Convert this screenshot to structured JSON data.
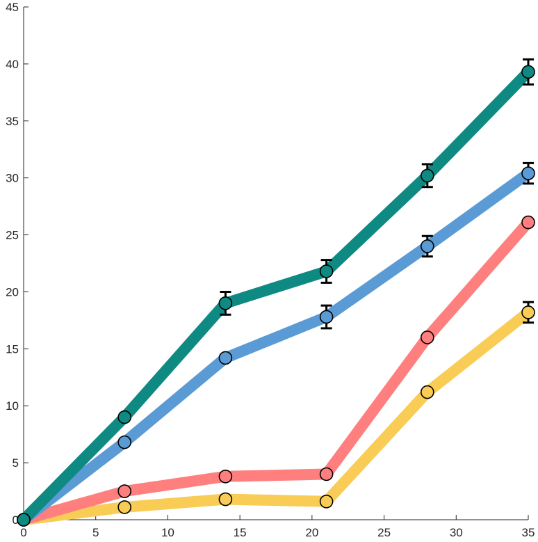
{
  "chart_data": {
    "type": "line",
    "title": "",
    "xlabel": "",
    "ylabel": "",
    "xlim": [
      0,
      35
    ],
    "ylim": [
      0,
      45
    ],
    "grid": false,
    "legend": "none",
    "x_ticks": [
      0,
      5,
      10,
      15,
      20,
      25,
      30,
      35
    ],
    "y_ticks": [
      0,
      5,
      10,
      15,
      20,
      25,
      30,
      35,
      40,
      45
    ],
    "x": [
      0,
      7,
      14,
      21,
      28,
      35
    ],
    "series": [
      {
        "color": "#0e8a82",
        "values": [
          0,
          9.0,
          19.0,
          21.8,
          30.2,
          39.3
        ],
        "error": [
          0,
          0,
          1.0,
          1.0,
          1.0,
          1.1
        ]
      },
      {
        "color": "#5b9bd5",
        "values": [
          0,
          6.8,
          14.2,
          17.8,
          24.0,
          30.4
        ],
        "error": [
          0,
          0,
          0,
          1.0,
          0.9,
          0.9
        ]
      },
      {
        "color": "#ff7f7f",
        "values": [
          0,
          2.5,
          3.8,
          4.0,
          16.0,
          26.1
        ],
        "error": [
          0,
          0,
          0,
          0,
          0,
          0
        ]
      },
      {
        "color": "#f9cd55",
        "values": [
          0,
          1.1,
          1.8,
          1.6,
          11.2,
          18.2
        ],
        "error": [
          0,
          0,
          0,
          0,
          0,
          0.9
        ]
      }
    ]
  }
}
